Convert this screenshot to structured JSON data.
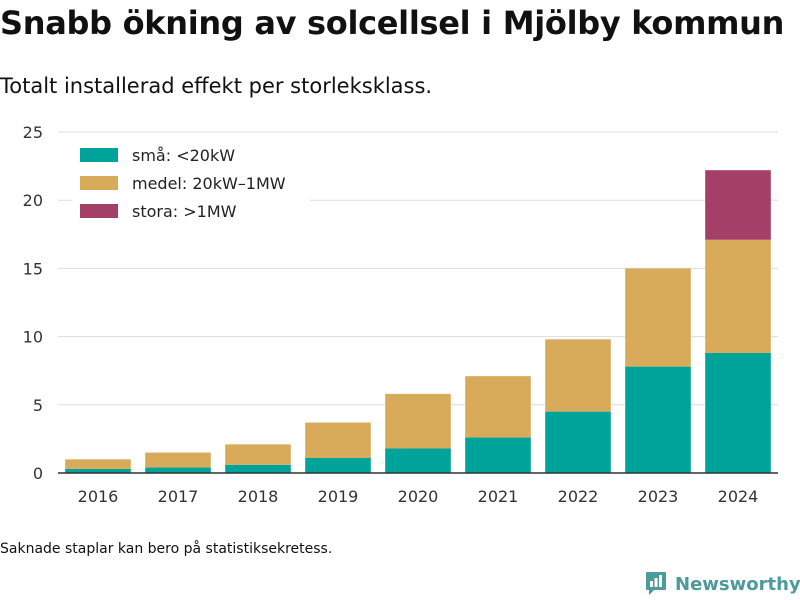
{
  "title": "Snabb ökning av solcellsel i Mjölby kommun",
  "subtitle": "Totalt installerad effekt per storleksklass.",
  "footnote": "Saknade staplar kan bero på statistiksekretess.",
  "brand": {
    "name": "Newsworthy",
    "icon": "bar-chart-logo-icon",
    "color": "#4a9b9a"
  },
  "chart_data": {
    "type": "bar",
    "stacked": true,
    "categories": [
      "2016",
      "2017",
      "2018",
      "2019",
      "2020",
      "2021",
      "2022",
      "2023",
      "2024"
    ],
    "series": [
      {
        "name": "små: <20kW",
        "color": "#00a39a",
        "values": [
          0.3,
          0.4,
          0.6,
          1.1,
          1.8,
          2.6,
          4.5,
          7.8,
          8.8
        ]
      },
      {
        "name": "medel: 20kW–1MW",
        "color": "#d8ab5a",
        "values": [
          0.7,
          1.1,
          1.5,
          2.6,
          4.0,
          4.5,
          5.3,
          7.2,
          8.3
        ]
      },
      {
        "name": "stora: >1MW",
        "color": "#a43f67",
        "values": [
          0,
          0,
          0,
          0,
          0,
          0,
          0,
          0,
          5.1
        ]
      }
    ],
    "ylim": [
      0,
      25
    ],
    "yticks": [
      0,
      5,
      10,
      15,
      20,
      25
    ],
    "grid": true,
    "legend_position": "top-left",
    "xlabel": "",
    "ylabel": ""
  }
}
